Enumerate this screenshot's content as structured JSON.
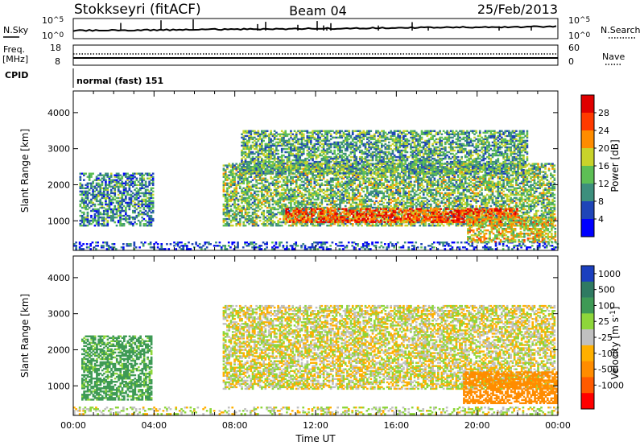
{
  "header": {
    "station": "Stokkseyri (fitACF)",
    "beam": "Beam 04",
    "date": "25/Feb/2013"
  },
  "strips": {
    "nsky": {
      "left_label": "N.Sky",
      "right_label": "N.Search",
      "left_ticks": [
        {
          "base": "10",
          "exp": "^5"
        },
        {
          "base": "10",
          "exp": "^0"
        }
      ],
      "right_ticks": [
        {
          "base": "10",
          "exp": "^5"
        },
        {
          "base": "10",
          "exp": "^0"
        }
      ]
    },
    "freq": {
      "left_label_1": "Freq.",
      "left_label_2": "[MHz]",
      "right_label": "Nave",
      "left_ticks": [
        "18",
        "8"
      ],
      "right_ticks": [
        "60",
        "0"
      ]
    },
    "cpid": {
      "left_label": "CPID",
      "text": "normal (fast) 151"
    }
  },
  "chart_data": [
    {
      "type": "heatmap",
      "panel": "power",
      "xlabel": "",
      "ylabel": "Slant Range [km]",
      "xlim_hours": [
        0,
        24
      ],
      "ylim_km": [
        180,
        4600
      ],
      "yticks": [
        1000,
        2000,
        3000,
        4000
      ],
      "colorbar": {
        "label": "Power [dB]",
        "ticks": [
          4,
          8,
          12,
          16,
          20,
          24,
          28
        ],
        "range": [
          0,
          32
        ],
        "colors": [
          "#0000ff",
          "#1f45b8",
          "#3d8f7d",
          "#5dbf55",
          "#c9d32a",
          "#ff8c00",
          "#ff3a00",
          "#e00000"
        ]
      },
      "regions": [
        {
          "name": "early-echo",
          "t0": 0.3,
          "t1": 3.9,
          "r0": 850,
          "r1": 2300,
          "value": 10
        },
        {
          "name": "near-range-clutter",
          "t0": 0.0,
          "t1": 24.0,
          "r0": 200,
          "r1": 420,
          "value": 6
        },
        {
          "name": "main-band",
          "t0": 7.4,
          "t1": 23.8,
          "r0": 850,
          "r1": 2600,
          "value": 14
        },
        {
          "name": "strong-core",
          "t0": 10.5,
          "t1": 22.0,
          "r0": 950,
          "r1": 1350,
          "value": 26
        },
        {
          "name": "upper-scatter",
          "t0": 8.3,
          "t1": 22.5,
          "r0": 2300,
          "r1": 3500,
          "value": 12
        },
        {
          "name": "late-patch",
          "t0": 19.5,
          "t1": 23.9,
          "r0": 400,
          "r1": 1100,
          "value": 18
        }
      ]
    },
    {
      "type": "heatmap",
      "panel": "velocity",
      "xlabel": "Time UT",
      "ylabel": "Slant Range [km]",
      "xticks": [
        "00:00",
        "04:00",
        "08:00",
        "12:00",
        "16:00",
        "20:00",
        "00:00"
      ],
      "xlim_hours": [
        0,
        24
      ],
      "ylim_km": [
        180,
        4600
      ],
      "yticks": [
        1000,
        2000,
        3000,
        4000
      ],
      "colorbar": {
        "label": "Velocity [m s",
        "label_exp": "-1",
        "label_close": "]",
        "ticks": [
          "1000",
          "500",
          "100",
          "25",
          "-25",
          "-100",
          "-500",
          "-1000"
        ],
        "colors": [
          "#1b3fbf",
          "#2f7a62",
          "#3e9a55",
          "#8ed63a",
          "#c0c0c0",
          "#ffb000",
          "#ff8c00",
          "#ff5a00",
          "#ff0000"
        ]
      },
      "regions": [
        {
          "name": "early-echo",
          "t0": 0.4,
          "t1": 3.9,
          "r0": 600,
          "r1": 2400,
          "value": 150
        },
        {
          "name": "near-range",
          "t0": 0.0,
          "t1": 24.0,
          "r0": 200,
          "r1": 420,
          "value": 20
        },
        {
          "name": "main-band",
          "t0": 7.4,
          "t1": 23.8,
          "r0": 900,
          "r1": 3200,
          "value": 0
        },
        {
          "name": "late-negative",
          "t0": 19.3,
          "t1": 23.9,
          "r0": 500,
          "r1": 1400,
          "value": -400
        }
      ]
    }
  ]
}
